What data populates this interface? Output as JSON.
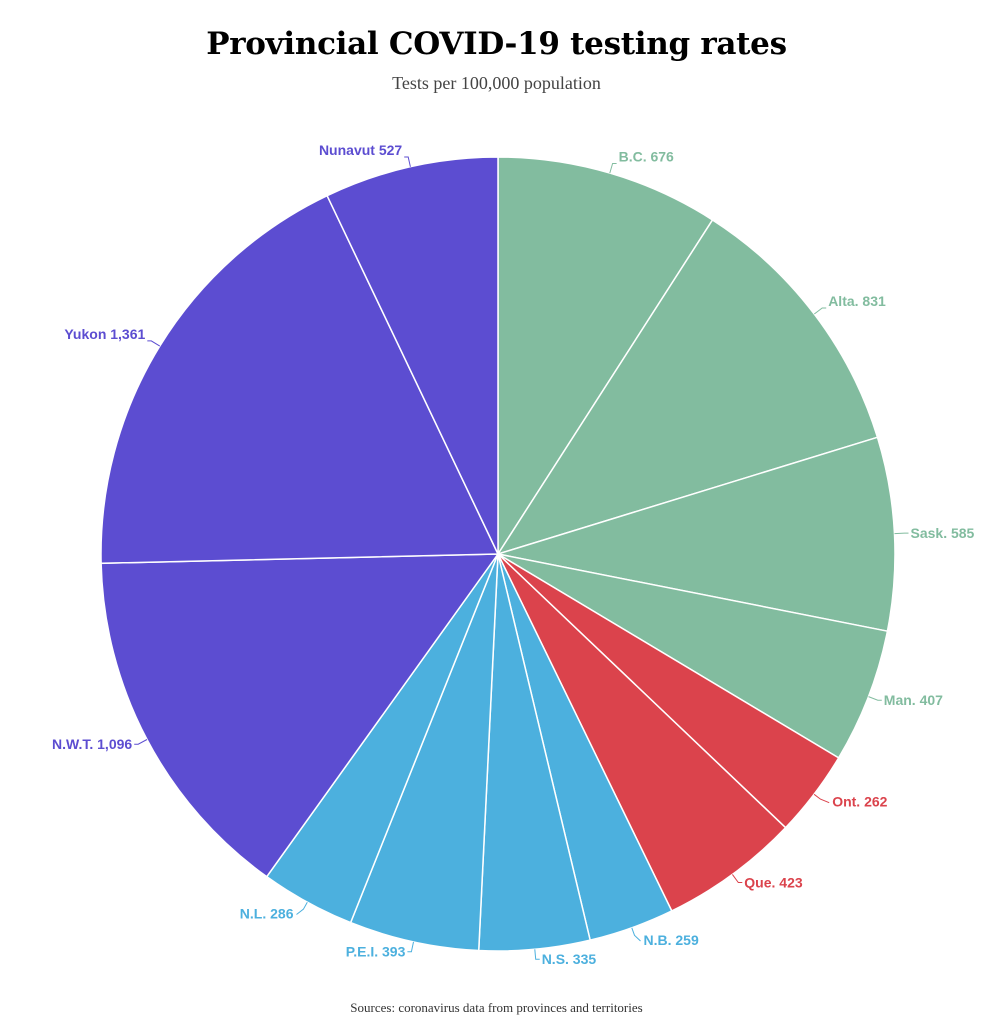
{
  "title": "Provincial COVID-19 testing rates",
  "subtitle": "Tests per 100,000 population",
  "source": "Sources: coronavirus data from provinces and territories",
  "colors": {
    "west": "#82bc9f",
    "central": "#db434c",
    "atlantic": "#4cb0de",
    "north": "#5c4dd1",
    "divider": "#ffffff"
  },
  "chart_data": {
    "type": "pie",
    "title": "Provincial COVID-19 testing rates",
    "subtitle": "Tests per 100,000 population",
    "slices": [
      {
        "label": "B.C.",
        "value": 676,
        "display": "B.C. 676",
        "group": "west"
      },
      {
        "label": "Alta.",
        "value": 831,
        "display": "Alta. 831",
        "group": "west"
      },
      {
        "label": "Sask.",
        "value": 585,
        "display": "Sask. 585",
        "group": "west"
      },
      {
        "label": "Man.",
        "value": 407,
        "display": "Man. 407",
        "group": "west"
      },
      {
        "label": "Ont.",
        "value": 262,
        "display": "Ont. 262",
        "group": "central"
      },
      {
        "label": "Que.",
        "value": 423,
        "display": "Que. 423",
        "group": "central"
      },
      {
        "label": "N.B.",
        "value": 259,
        "display": "N.B. 259",
        "group": "atlantic"
      },
      {
        "label": "N.S.",
        "value": 335,
        "display": "N.S. 335",
        "group": "atlantic"
      },
      {
        "label": "P.E.I.",
        "value": 393,
        "display": "P.E.I. 393",
        "group": "atlantic"
      },
      {
        "label": "N.L.",
        "value": 286,
        "display": "N.L. 286",
        "group": "atlantic"
      },
      {
        "label": "N.W.T.",
        "value": 1096,
        "display": "N.W.T. 1,096",
        "group": "north"
      },
      {
        "label": "Yukon",
        "value": 1361,
        "display": "Yukon 1,361",
        "group": "north"
      },
      {
        "label": "Nunavut",
        "value": 527,
        "display": "Nunavut 527",
        "group": "north"
      }
    ]
  }
}
